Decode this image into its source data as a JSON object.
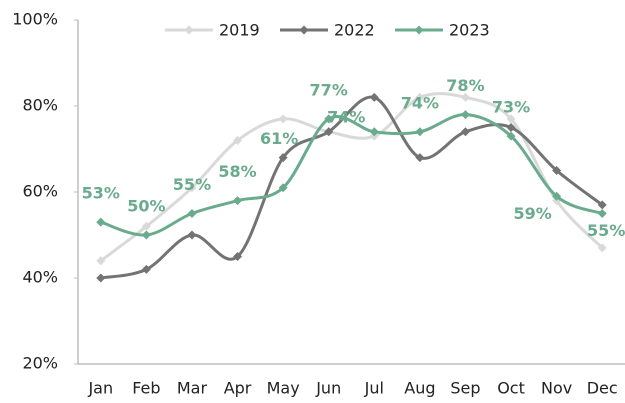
{
  "chart_data": {
    "type": "line",
    "categories": [
      "Jan",
      "Feb",
      "Mar",
      "Apr",
      "May",
      "Jun",
      "Jul",
      "Aug",
      "Sep",
      "Oct",
      "Nov",
      "Dec"
    ],
    "series": [
      {
        "name": "2019",
        "color": "#d9d9d9",
        "values": [
          44,
          52,
          61,
          72,
          77,
          74,
          73,
          82,
          82,
          77,
          58,
          47
        ]
      },
      {
        "name": "2022",
        "color": "#737373",
        "values": [
          40,
          42,
          50,
          45,
          68,
          74,
          82,
          68,
          74,
          75,
          65,
          57
        ]
      },
      {
        "name": "2023",
        "color": "#6aab8e",
        "values": [
          53,
          50,
          55,
          58,
          61,
          77,
          74,
          74,
          78,
          73,
          59,
          55
        ],
        "value_labels": [
          "53%",
          "50%",
          "55%",
          "58%",
          "61%",
          "77%",
          "74%",
          "74%",
          "78%",
          "73%",
          "59%",
          "55%"
        ]
      }
    ],
    "ylim": [
      20,
      100
    ],
    "yticks": [
      {
        "value": 20,
        "label": "20%"
      },
      {
        "value": 40,
        "label": "40%"
      },
      {
        "value": 60,
        "label": "60%"
      },
      {
        "value": 80,
        "label": "80%"
      },
      {
        "value": 100,
        "label": "100%"
      }
    ],
    "legend": "top",
    "smooth": true
  }
}
